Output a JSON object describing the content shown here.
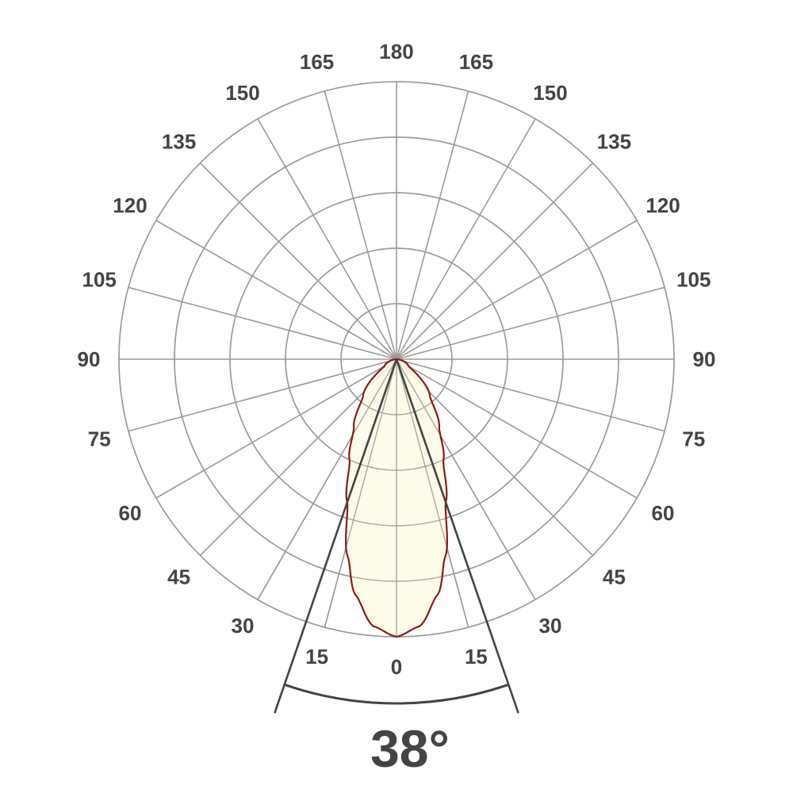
{
  "chart_data": {
    "type": "polar",
    "angle_step_deg": 15,
    "rings": 5,
    "angle_labels_left": [
      "0",
      "15",
      "30",
      "45",
      "60",
      "75",
      "90",
      "105",
      "120",
      "135",
      "150",
      "165",
      "180"
    ],
    "angle_labels_right": [
      "15",
      "30",
      "45",
      "60",
      "75",
      "90",
      "105",
      "120",
      "135",
      "150",
      "165"
    ],
    "series": [
      {
        "angles_deg": [
          0,
          5,
          10,
          14,
          19,
          25,
          32,
          42,
          60,
          90
        ],
        "relative_intensity": [
          1.0,
          0.965,
          0.86,
          0.73,
          0.545,
          0.4,
          0.29,
          0.18,
          0.05,
          0.0
        ]
      }
    ],
    "beam_angle_deg": 38,
    "beam_angle_label": "38°",
    "grid": true,
    "colors": {
      "grid": "#9a9a9a",
      "curve": "#8b1a1a",
      "fill": "#fdfbe6",
      "beam_lines": "#444444",
      "text": "#444444"
    }
  }
}
